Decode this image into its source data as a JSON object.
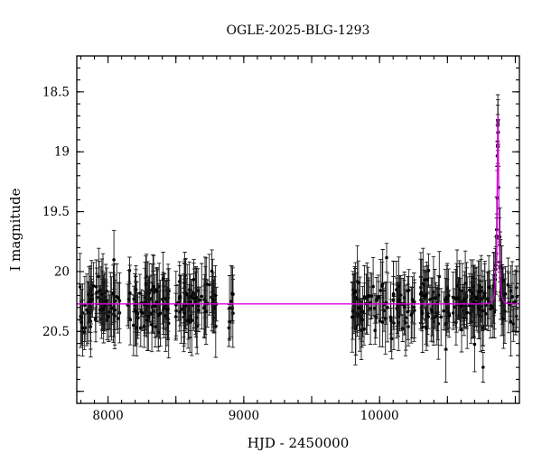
{
  "window": {
    "background": "#ffffff"
  },
  "chart_data": {
    "type": "scatter",
    "title": "OGLE-2025-BLG-1293",
    "xlabel": "HJD - 2450000",
    "ylabel": "I magnitude",
    "xlim": [
      7770,
      11030
    ],
    "ylim": [
      18.2,
      21.1
    ],
    "y_inverted": true,
    "grid": false,
    "legend": "none",
    "x_ticks_labeled": [
      8000,
      9000,
      10000
    ],
    "y_ticks_labeled": [
      18.5,
      19,
      19.5,
      20,
      20.5
    ],
    "x_minor_step": 100,
    "x_major_step": 500,
    "y_minor_step": 0.1,
    "y_major_step": 0.5,
    "point_color": "#000000",
    "error_bar_color": "#1a1a1a",
    "model_color": "#dd00dd",
    "baseline_mag": 20.27,
    "scatter_sigma": 0.1,
    "error_bar_min": 0.1,
    "error_bar_span": 0.2,
    "outlier_fraction": 0.1,
    "outlier_extra_sigma": 0.18,
    "model": {
      "kind": "paczynski",
      "t0": 10872,
      "tE": 15,
      "u0": 0.24,
      "peak_mag": 18.7
    },
    "seasons": [
      {
        "x_start": 7790,
        "x_end": 8090,
        "n": 75
      },
      {
        "x_start": 8140,
        "x_end": 8450,
        "n": 85
      },
      {
        "x_start": 8490,
        "x_end": 8800,
        "n": 75
      },
      {
        "x_start": 8880,
        "x_end": 8925,
        "n": 9
      },
      {
        "x_start": 9790,
        "x_end": 10260,
        "n": 95
      },
      {
        "x_start": 10300,
        "x_end": 10650,
        "n": 85
      },
      {
        "x_start": 10660,
        "x_end": 11010,
        "n": 95
      },
      {
        "x_start": 10850,
        "x_end": 10895,
        "n": 12
      }
    ],
    "seed": 42
  }
}
